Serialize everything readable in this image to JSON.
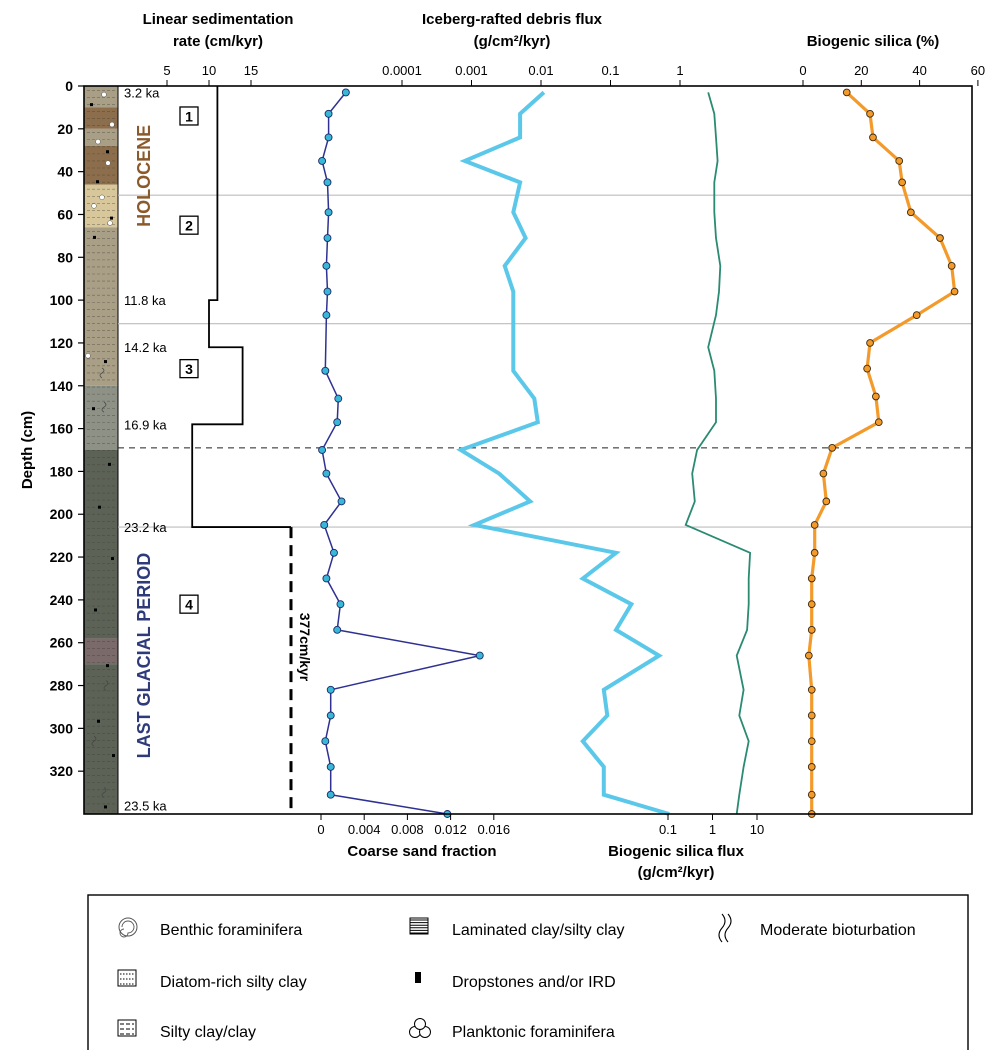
{
  "chart_data": {
    "type": "line",
    "y_axis": {
      "label": "Depth (cm)",
      "range": [
        0,
        340
      ],
      "ticks": [
        0,
        20,
        40,
        60,
        80,
        100,
        120,
        140,
        160,
        180,
        200,
        220,
        240,
        260,
        280,
        300,
        320
      ],
      "inverted": true
    },
    "axis_titles": {
      "sedimentation": [
        "Linear sedimentation",
        "rate (cm/kyr)"
      ],
      "ird": [
        "Iceberg-rafted debris flux",
        "(g/cm²/kyr)"
      ],
      "silica_pct": "Biogenic silica (%)",
      "coarse": "Coarse sand fraction",
      "silica_flux": [
        "Biogenic silica flux",
        "(g/cm²/kyr)"
      ]
    },
    "ticks": {
      "sedimentation": [
        "5",
        "10",
        "15"
      ],
      "ird": [
        "0.0001",
        "0.001",
        "0.01",
        "0.1",
        "1"
      ],
      "silica_pct": [
        "0",
        "20",
        "40",
        "60"
      ],
      "coarse": [
        "0",
        "0.004",
        "0.008",
        "0.012",
        "0.016"
      ],
      "silica_flux": [
        "0.1",
        "1",
        "10"
      ]
    },
    "sedimentation_rate": {
      "color": "#000000",
      "steps": [
        {
          "from": 0,
          "to": 100,
          "rate": 11
        },
        {
          "from": 100,
          "to": 122,
          "rate": 10
        },
        {
          "from": 122,
          "to": 158,
          "rate": 14
        },
        {
          "from": 158,
          "to": 206,
          "rate": 8
        }
      ],
      "dashed": {
        "from": 206,
        "to": 340,
        "label": "377cm/kyr"
      }
    },
    "age_labels": [
      {
        "depth": 3,
        "text": "3.2 ka"
      },
      {
        "depth": 100,
        "text": "11.8 ka"
      },
      {
        "depth": 122,
        "text": "14.2 ka"
      },
      {
        "depth": 158,
        "text": "16.9 ka"
      },
      {
        "depth": 206,
        "text": "23.2 ka"
      },
      {
        "depth": 336,
        "text": "23.5 ka"
      }
    ],
    "units": [
      {
        "id": "1",
        "depth": 14
      },
      {
        "id": "2",
        "depth": 65
      },
      {
        "id": "3",
        "depth": 132
      },
      {
        "id": "4",
        "depth": 242
      }
    ],
    "period_labels": [
      {
        "text": "HOLOCENE",
        "color": "#8b5a2b"
      },
      {
        "text": "LAST GLACIAL PERIOD",
        "color": "#2e3a7a"
      }
    ],
    "unit_boundaries": [
      {
        "depth": 51,
        "style": "solid"
      },
      {
        "depth": 111,
        "style": "solid"
      },
      {
        "depth": 169,
        "style": "dashed"
      },
      {
        "depth": 206,
        "style": "solid"
      }
    ],
    "series": [
      {
        "name": "Coarse sand fraction",
        "color": "#2e3192",
        "marker_color": "#39b7d6",
        "y": [
          3,
          13,
          24,
          35,
          45,
          59,
          71,
          84,
          96,
          107,
          133,
          146,
          157,
          170,
          181,
          194,
          205,
          218,
          230,
          242,
          254,
          266,
          282,
          294,
          306,
          318,
          331,
          340
        ],
        "x": [
          0.0023,
          0.0007,
          0.0007,
          0.0001,
          0.0006,
          0.0007,
          0.0006,
          0.0005,
          0.0006,
          0.0005,
          0.0004,
          0.0016,
          0.0015,
          0.0001,
          0.0005,
          0.0019,
          0.0003,
          0.0012,
          0.0005,
          0.0018,
          0.0015,
          0.0147,
          0.0009,
          0.0009,
          0.0004,
          0.0009,
          0.0009,
          0.0117
        ]
      },
      {
        "name": "Iceberg-rafted debris flux",
        "color": "#5bc8ea",
        "y": [
          3,
          13,
          24,
          35,
          45,
          59,
          71,
          84,
          96,
          107,
          133,
          146,
          157,
          170,
          181,
          194,
          205,
          218,
          230,
          242,
          254,
          266,
          282,
          294,
          306,
          318,
          331,
          340
        ],
        "x": [
          0.011,
          0.005,
          0.005,
          0.0008,
          0.005,
          0.004,
          0.006,
          0.003,
          0.004,
          0.004,
          0.004,
          0.008,
          0.009,
          0.0007,
          0.0025,
          0.007,
          0.0011,
          0.12,
          0.04,
          0.2,
          0.12,
          0.5,
          0.08,
          0.09,
          0.04,
          0.08,
          0.08,
          0.7
        ]
      },
      {
        "name": "Biogenic silica flux",
        "color": "#2a8a72",
        "y": [
          3,
          13,
          24,
          35,
          45,
          59,
          71,
          84,
          96,
          107,
          122,
          133,
          146,
          157,
          170,
          181,
          194,
          205,
          218,
          230,
          242,
          254,
          266,
          282,
          294,
          306,
          318,
          331,
          340
        ],
        "x": [
          0.8,
          1.1,
          1.2,
          1.3,
          1.1,
          1.1,
          1.2,
          1.5,
          1.4,
          1.2,
          0.8,
          1.1,
          1.2,
          1.2,
          0.45,
          0.35,
          0.4,
          0.25,
          7,
          6.5,
          6.5,
          6,
          3.5,
          5,
          4,
          6.5,
          5,
          4,
          3.5
        ]
      },
      {
        "name": "Biogenic silica (%)",
        "color": "#f39a2b",
        "y": [
          3,
          13,
          24,
          35,
          45,
          59,
          71,
          84,
          96,
          107,
          120,
          132,
          145,
          157,
          169,
          181,
          194,
          205,
          218,
          230,
          242,
          254,
          266,
          282,
          294,
          306,
          318,
          331,
          340
        ],
        "x": [
          15,
          23,
          24,
          33,
          34,
          37,
          47,
          51,
          52,
          39,
          23,
          22,
          25,
          26,
          10,
          7,
          8,
          4,
          4,
          3,
          3,
          3,
          2,
          3,
          3,
          3,
          3,
          3,
          3
        ]
      }
    ]
  },
  "legend": {
    "items": [
      {
        "key": "benthic",
        "label": "Benthic foraminifera"
      },
      {
        "key": "laminated",
        "label": "Laminated clay/silty clay"
      },
      {
        "key": "bioturbation",
        "label": "Moderate bioturbation"
      },
      {
        "key": "diatom",
        "label": "Diatom-rich silty clay"
      },
      {
        "key": "dropstone",
        "label": "Dropstones and/or IRD"
      },
      {
        "key": "silty",
        "label": "Silty clay/clay"
      },
      {
        "key": "planktonic",
        "label": "Planktonic foraminifera"
      }
    ]
  },
  "core_colors": {
    "holocene_base": "#a99e86",
    "brown": "#8d6e4c",
    "tan": "#d7c79a",
    "grey": "#8e9185",
    "dark": "#5d6256",
    "mauve": "#7a6a6a"
  }
}
